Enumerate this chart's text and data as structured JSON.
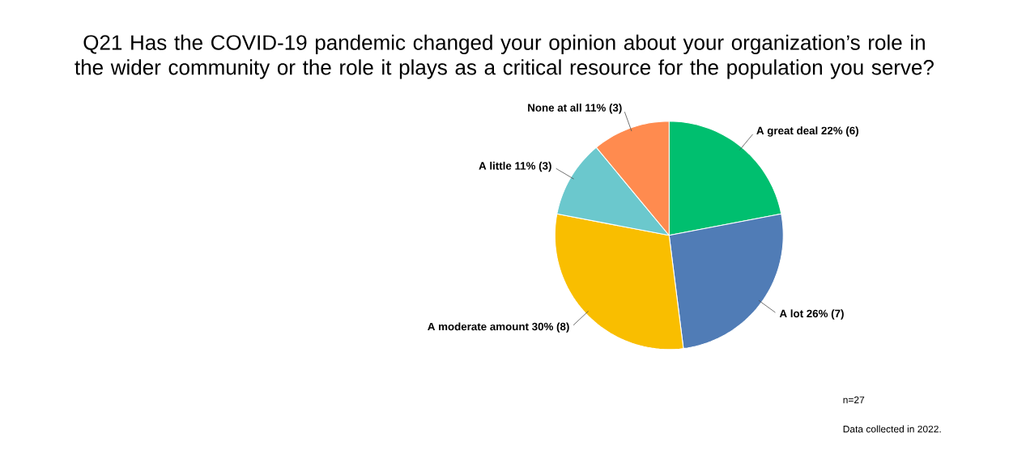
{
  "chart_data": {
    "type": "pie",
    "title": "Q21 Has the COVID-19 pandemic changed your opinion about your organization’s role in the wider community or the role it plays as a critical resource for the population you serve?",
    "categories": [
      "A great deal",
      "A lot",
      "A moderate amount",
      "A little",
      "None at all"
    ],
    "values": [
      22,
      26,
      30,
      11,
      11
    ],
    "value_labels": [
      "22% (6)",
      "26% (7)",
      "30% (8)",
      "11% (3)",
      "11% (3)"
    ],
    "colors": [
      "#00bf6f",
      "#507cb6",
      "#f9be00",
      "#6bc8cd",
      "#ff8b4f"
    ],
    "annotations": [
      "n=27",
      "Data collected in 2022."
    ]
  }
}
